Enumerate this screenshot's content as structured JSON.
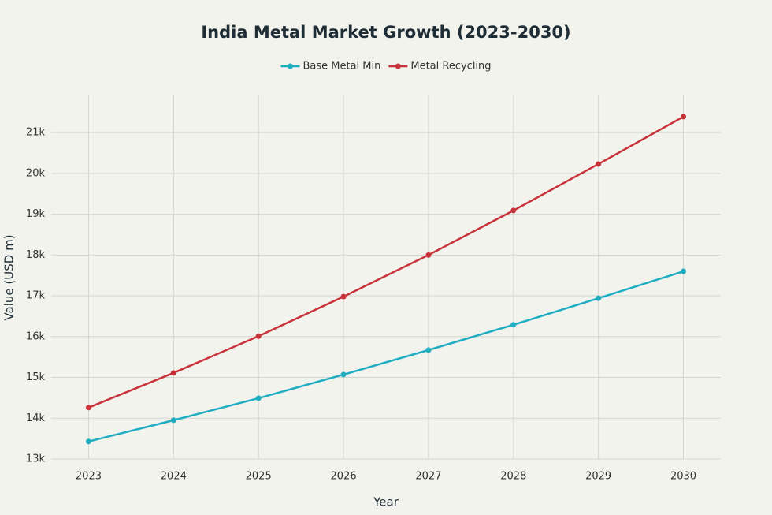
{
  "chart_data": {
    "type": "line",
    "title": "India Metal Market Growth (2023-2030)",
    "x_label": "Year",
    "y_label": "Value (USD m)",
    "x": [
      2023,
      2024,
      2025,
      2026,
      2027,
      2028,
      2029,
      2030
    ],
    "series": [
      {
        "name": "Base Metal Min",
        "color": "#1fadc2",
        "values": [
          13430,
          13950,
          14490,
          15070,
          15670,
          16290,
          16940,
          17600
        ]
      },
      {
        "name": "Metal Recycling",
        "color": "#c8323a",
        "values": [
          14260,
          15110,
          16010,
          16980,
          18000,
          19090,
          20230,
          21390
        ]
      }
    ],
    "xlim": [
      2022.56,
      2030.44
    ],
    "xticks": [
      2023,
      2024,
      2025,
      2026,
      2027,
      2028,
      2029,
      2030
    ],
    "ylim": [
      13000,
      21930
    ],
    "yticks": [
      {
        "value": 13000,
        "label": "13k"
      },
      {
        "value": 14000,
        "label": "14k"
      },
      {
        "value": 15000,
        "label": "15k"
      },
      {
        "value": 16000,
        "label": "16k"
      },
      {
        "value": 17000,
        "label": "17k"
      },
      {
        "value": 18000,
        "label": "18k"
      },
      {
        "value": 19000,
        "label": "19k"
      },
      {
        "value": 20000,
        "label": "20k"
      },
      {
        "value": 21000,
        "label": "21k"
      }
    ],
    "grid": true,
    "legend": "top"
  }
}
